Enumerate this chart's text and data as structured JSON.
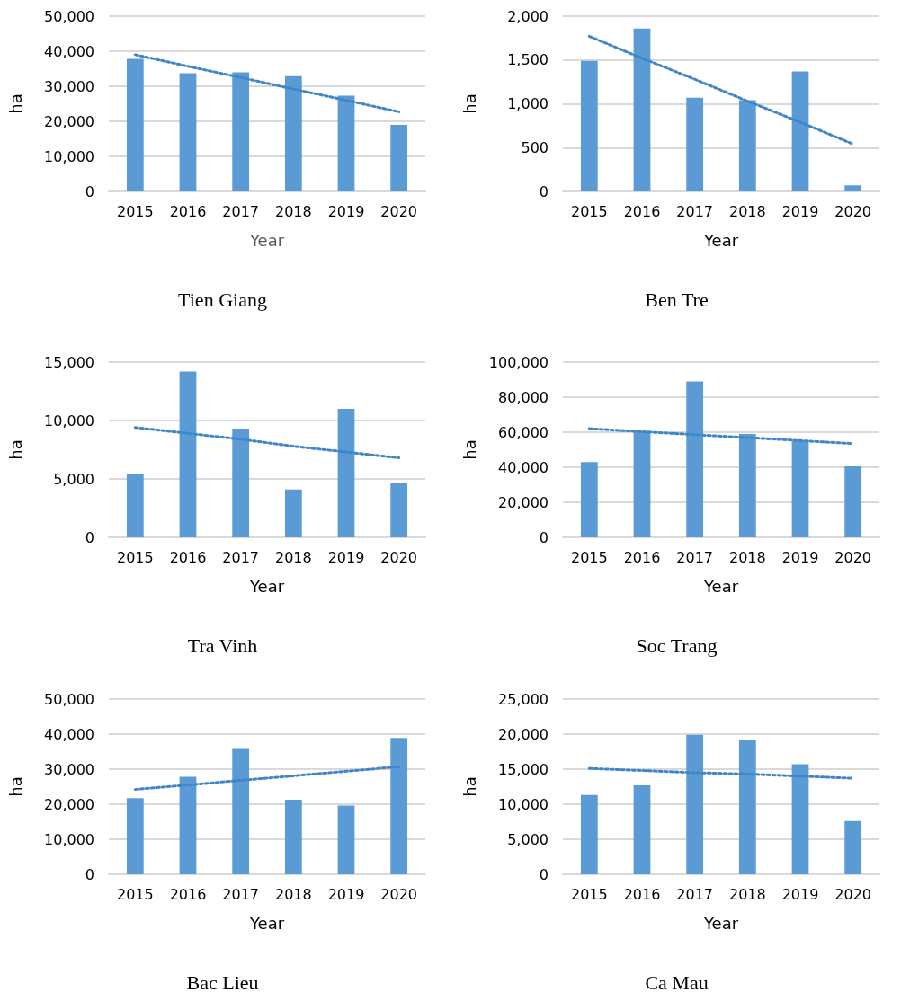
{
  "chart_data": [
    {
      "type": "bar",
      "title": "Tien Giang",
      "xlabel": "Year",
      "ylabel": "ha",
      "categories": [
        "2015",
        "2016",
        "2017",
        "2018",
        "2019",
        "2020"
      ],
      "series": [
        {
          "color": "#5b9bd5",
          "values": [
            37800,
            33700,
            34000,
            32900,
            27300,
            19000
          ]
        },
        {
          "type": "line",
          "color": "#3f86c8",
          "line_style": "dotted",
          "marker": "none",
          "values": [
            39000,
            35700,
            32500,
            29200,
            26000,
            22700
          ]
        }
      ],
      "ylim": [
        0,
        50000
      ],
      "yticks": [
        {
          "value": 0,
          "label": "0"
        },
        {
          "value": 10000,
          "label": "10,000"
        },
        {
          "value": 20000,
          "label": "20,000"
        },
        {
          "value": 30000,
          "label": "30,000"
        },
        {
          "value": 40000,
          "label": "40,000"
        },
        {
          "value": 50000,
          "label": "50,000"
        }
      ],
      "grid": "y"
    },
    {
      "type": "bar",
      "title": "Ben Tre",
      "xlabel": "Year",
      "ylabel": "ha",
      "categories": [
        "2015",
        "2016",
        "2017",
        "2018",
        "2019",
        "2020"
      ],
      "series": [
        {
          "color": "#5b9bd5",
          "values": [
            1490,
            1860,
            1070,
            1040,
            1370,
            70
          ]
        },
        {
          "type": "line",
          "color": "#3f86c8",
          "line_style": "dotted",
          "marker": "none",
          "values": [
            1770,
            1520,
            1280,
            1030,
            790,
            540
          ]
        }
      ],
      "ylim": [
        0,
        2000
      ],
      "yticks": [
        {
          "value": 0,
          "label": "0"
        },
        {
          "value": 500,
          "label": "500"
        },
        {
          "value": 1000,
          "label": "1,000"
        },
        {
          "value": 1500,
          "label": "1,500"
        },
        {
          "value": 2000,
          "label": "2,000"
        }
      ],
      "grid": "y"
    },
    {
      "type": "bar",
      "title": "Tra Vinh",
      "xlabel": "Year",
      "ylabel": "ha",
      "categories": [
        "2015",
        "2016",
        "2017",
        "2018",
        "2019",
        "2020"
      ],
      "series": [
        {
          "color": "#5b9bd5",
          "values": [
            5400,
            14200,
            9300,
            4100,
            11000,
            4700
          ]
        },
        {
          "type": "line",
          "color": "#3f86c8",
          "line_style": "dotted",
          "marker": "none",
          "values": [
            9400,
            8900,
            8400,
            7800,
            7300,
            6800
          ]
        }
      ],
      "ylim": [
        0,
        15000
      ],
      "yticks": [
        {
          "value": 0,
          "label": "0"
        },
        {
          "value": 5000,
          "label": "5,000"
        },
        {
          "value": 10000,
          "label": "10,000"
        },
        {
          "value": 15000,
          "label": "15,000"
        }
      ],
      "grid": "y"
    },
    {
      "type": "bar",
      "title": "Soc Trang",
      "xlabel": "Year",
      "ylabel": "ha",
      "categories": [
        "2015",
        "2016",
        "2017",
        "2018",
        "2019",
        "2020"
      ],
      "series": [
        {
          "color": "#5b9bd5",
          "values": [
            43000,
            60500,
            89000,
            59000,
            55000,
            40500
          ]
        },
        {
          "type": "line",
          "color": "#3f86c8",
          "line_style": "dotted",
          "marker": "none",
          "values": [
            62000,
            60300,
            58600,
            56900,
            55200,
            53500
          ]
        }
      ],
      "ylim": [
        0,
        100000
      ],
      "yticks": [
        {
          "value": 0,
          "label": "0"
        },
        {
          "value": 20000,
          "label": "20,000"
        },
        {
          "value": 40000,
          "label": "40,000"
        },
        {
          "value": 60000,
          "label": "60,000"
        },
        {
          "value": 80000,
          "label": "80,000"
        },
        {
          "value": 100000,
          "label": "100,000"
        }
      ],
      "grid": "y"
    },
    {
      "type": "bar",
      "title": "Bac Lieu",
      "xlabel": "Year",
      "ylabel": "ha",
      "categories": [
        "2015",
        "2016",
        "2017",
        "2018",
        "2019",
        "2020"
      ],
      "series": [
        {
          "color": "#5b9bd5",
          "values": [
            21700,
            27800,
            36000,
            21300,
            19600,
            38900
          ]
        },
        {
          "type": "line",
          "color": "#3f86c8",
          "line_style": "dotted",
          "marker": "none",
          "values": [
            24200,
            25500,
            26800,
            28100,
            29400,
            30700
          ]
        }
      ],
      "ylim": [
        0,
        50000
      ],
      "yticks": [
        {
          "value": 0,
          "label": "0"
        },
        {
          "value": 10000,
          "label": "10,000"
        },
        {
          "value": 20000,
          "label": "20,000"
        },
        {
          "value": 30000,
          "label": "30,000"
        },
        {
          "value": 40000,
          "label": "40,000"
        },
        {
          "value": 50000,
          "label": "50,000"
        }
      ],
      "grid": "y"
    },
    {
      "type": "bar",
      "title": "Ca Mau",
      "xlabel": "Year",
      "ylabel": "ha",
      "categories": [
        "2015",
        "2016",
        "2017",
        "2018",
        "2019",
        "2020"
      ],
      "series": [
        {
          "color": "#5b9bd5",
          "values": [
            11300,
            12700,
            19900,
            19200,
            15700,
            7600
          ]
        },
        {
          "type": "line",
          "color": "#3f86c8",
          "line_style": "dotted",
          "marker": "none",
          "values": [
            15100,
            14800,
            14500,
            14300,
            14000,
            13700
          ]
        }
      ],
      "ylim": [
        0,
        25000
      ],
      "yticks": [
        {
          "value": 0,
          "label": "0"
        },
        {
          "value": 5000,
          "label": "5,000"
        },
        {
          "value": 10000,
          "label": "10,000"
        },
        {
          "value": 15000,
          "label": "15,000"
        },
        {
          "value": 20000,
          "label": "20,000"
        },
        {
          "value": 25000,
          "label": "25,000"
        }
      ],
      "grid": "y"
    }
  ]
}
